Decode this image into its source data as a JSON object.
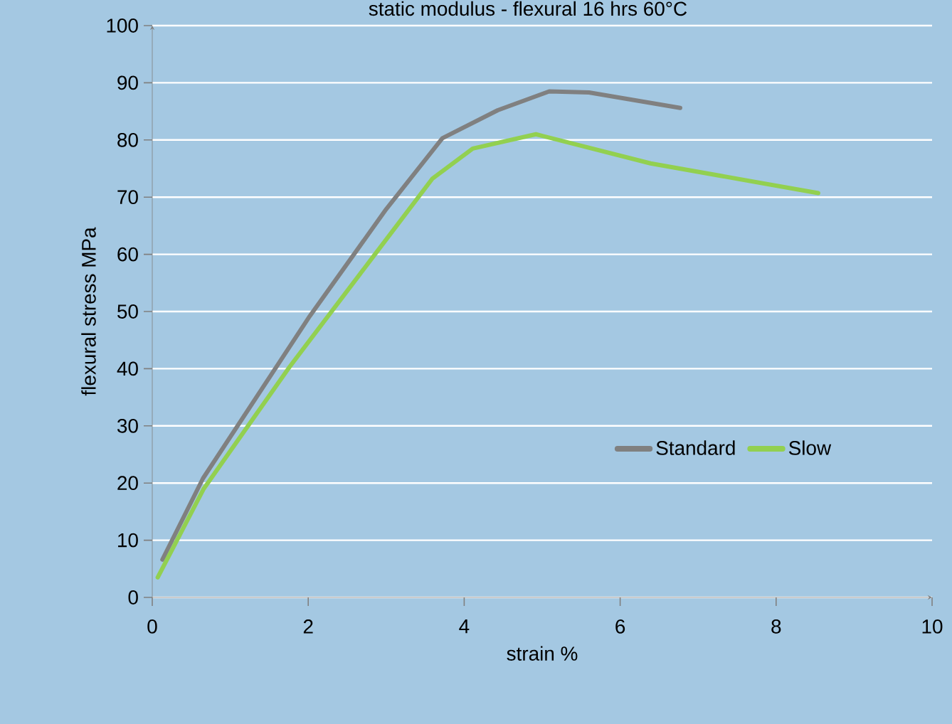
{
  "chart_data": {
    "type": "line",
    "title": "static modulus - flexural 16 hrs 60°C",
    "xlabel": "strain   %",
    "ylabel": "flexural stress      MPa",
    "xlim": [
      0,
      10
    ],
    "ylim": [
      0,
      100
    ],
    "xticks": [
      0,
      2,
      4,
      6,
      8,
      10
    ],
    "yticks": [
      0,
      10,
      20,
      30,
      40,
      50,
      60,
      70,
      80,
      90,
      100
    ],
    "grid": "y",
    "legend": "bottom right",
    "marker": "none",
    "line_style": "solid",
    "series": [
      {
        "name": "Standard",
        "color": "#808080",
        "x": [
          0.13,
          0.65,
          2.02,
          3.0,
          3.72,
          4.43,
          5.09,
          5.6,
          6.77
        ],
        "values": [
          6.6,
          20.8,
          49.2,
          67.9,
          80.3,
          85.2,
          88.5,
          88.3,
          85.6
        ]
      },
      {
        "name": "Slow",
        "color": "#92d050",
        "x": [
          0.07,
          0.66,
          1.76,
          2.8,
          3.59,
          4.11,
          4.92,
          6.39,
          8.54
        ],
        "values": [
          3.5,
          19.0,
          40.3,
          59.0,
          73.2,
          78.5,
          81.0,
          75.9,
          70.7
        ]
      }
    ]
  }
}
